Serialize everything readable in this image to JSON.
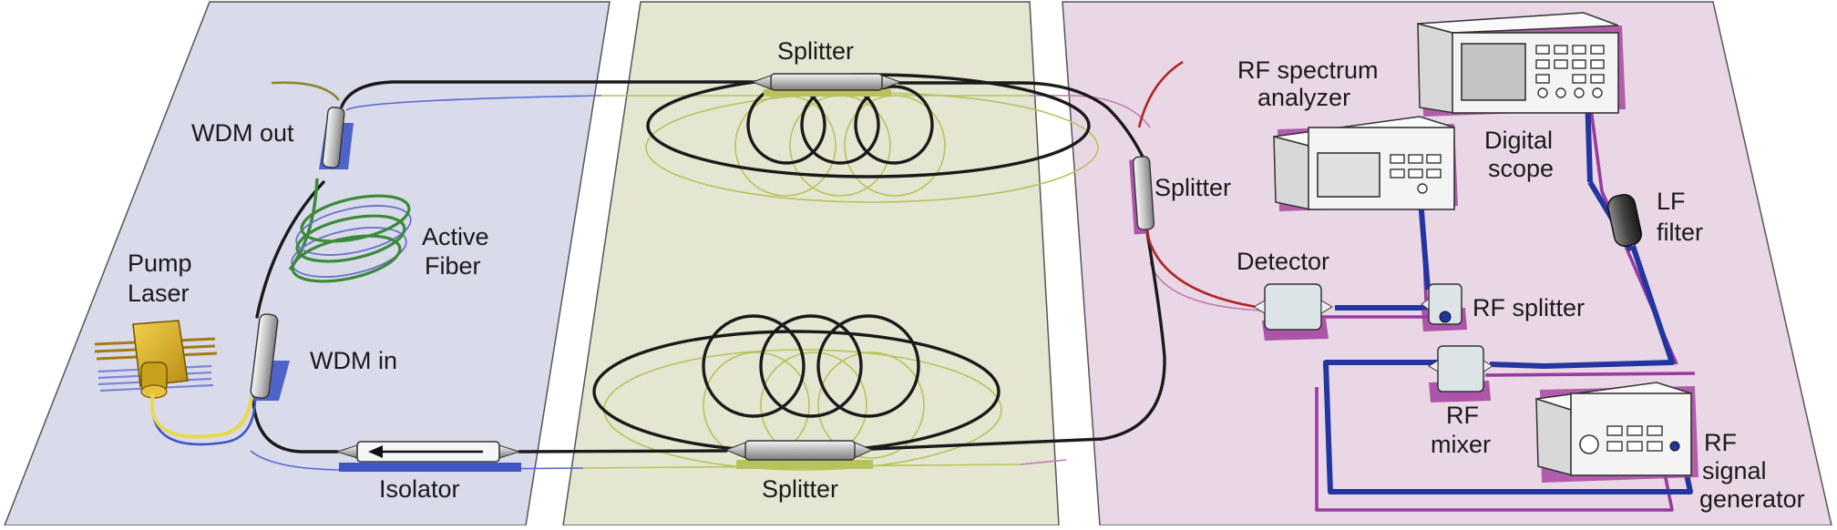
{
  "labels": {
    "splitter_top": "Splitter",
    "wdm_out": "WDM out",
    "active_fiber_1": "Active",
    "active_fiber_2": "Fiber",
    "pump_laser_1": "Pump",
    "pump_laser_2": "Laser",
    "wdm_in": "WDM in",
    "isolator": "Isolator",
    "splitter_bottom": "Splitter",
    "splitter_right": "Splitter",
    "rf_spectrum_1": "RF spectrum",
    "rf_spectrum_2": "analyzer",
    "digital_scope_1": "Digital",
    "digital_scope_2": "scope",
    "lf_filter_1": "LF",
    "lf_filter_2": "filter",
    "detector": "Detector",
    "rf_splitter": "RF splitter",
    "rf_mixer_1": "RF",
    "rf_mixer_2": "mixer",
    "rf_siggen_1": "RF",
    "rf_siggen_2": "signal",
    "rf_siggen_3": "generator"
  },
  "colors": {
    "panel_left": "#d9daea",
    "panel_middle": "#e4e6d1",
    "panel_right": "#ead7e6",
    "fiber": "#1a1a1a",
    "fiber_shadow_blue": "#5a6ad0",
    "fiber_shadow_green": "#b7c35a",
    "fiber_shadow_pink": "#c07ab6",
    "active_fiber": "#3a8a3a",
    "pump_fiber": "#e8d94a",
    "red_fiber": "#b0252a",
    "coax_blue": "#2235a0",
    "coax_shadow": "#9a3aa0",
    "device_shadow": "#a23e9e"
  }
}
